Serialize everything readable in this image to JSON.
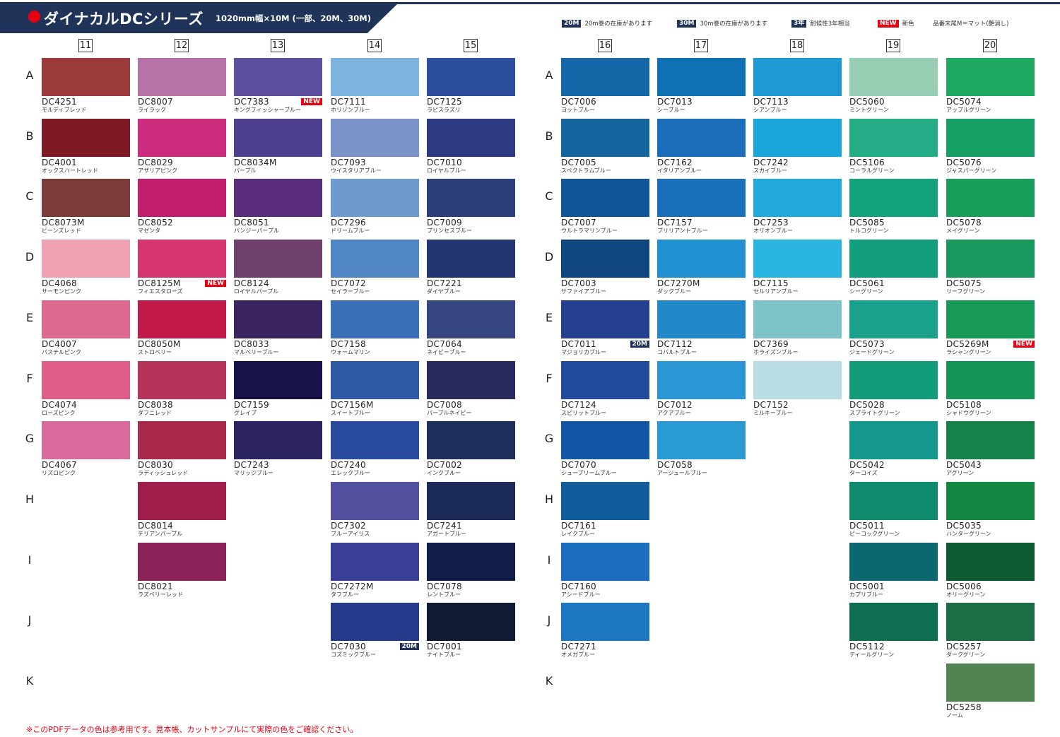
{
  "header": {
    "title": "ダイナカルDCシリーズ",
    "subtitle": "1020mm幅×10M (一部、20M、30M)"
  },
  "legend": [
    {
      "badge": "20M",
      "text": "20m巻の在庫があります",
      "badge_color": "#1f3458"
    },
    {
      "badge": "30M",
      "text": "30m巻の在庫があります",
      "badge_color": "#1f3458"
    },
    {
      "badge": "3年",
      "text": "耐候性3年相当",
      "badge_color": "#1f3458"
    },
    {
      "badge": "NEW",
      "text": "新色",
      "badge_color": "#e60012"
    },
    {
      "badge": "",
      "text": "品番末尾M＝マット(艶消し)",
      "badge_color": ""
    }
  ],
  "column_numbers": [
    "11",
    "12",
    "13",
    "14",
    "15",
    "16",
    "17",
    "18",
    "19",
    "20"
  ],
  "row_labels": [
    "A",
    "B",
    "C",
    "D",
    "E",
    "F",
    "G",
    "H",
    "I",
    "J",
    "K"
  ],
  "columns": [
    {
      "num": "11",
      "colors": [
        {
          "row": "A",
          "code": "DC4251",
          "name": "モルディブレッド",
          "hex": "#9a3a3b"
        },
        {
          "row": "B",
          "code": "DC4001",
          "name": "オックスハートレッド",
          "hex": "#7e1a24"
        },
        {
          "row": "C",
          "code": "DC8073M",
          "name": "ビーンズレッド",
          "hex": "#7b3b3a"
        },
        {
          "row": "D",
          "code": "DC4068",
          "name": "サーモンピンク",
          "hex": "#eea2b2"
        },
        {
          "row": "E",
          "code": "DC4007",
          "name": "パステルピンク",
          "hex": "#db6a8e"
        },
        {
          "row": "F",
          "code": "DC4074",
          "name": "ローズピンク",
          "hex": "#e05d89"
        },
        {
          "row": "G",
          "code": "DC4067",
          "name": "リズロピンク",
          "hex": "#d86b9c"
        }
      ]
    },
    {
      "num": "12",
      "colors": [
        {
          "row": "A",
          "code": "DC8007",
          "name": "ライラック",
          "hex": "#b673a8"
        },
        {
          "row": "B",
          "code": "DC8029",
          "name": "アザリアピンク",
          "hex": "#cc2b7e"
        },
        {
          "row": "C",
          "code": "DC8052",
          "name": "マゼンタ",
          "hex": "#c01d6a"
        },
        {
          "row": "D",
          "code": "DC8125M",
          "name": "フィエスタローズ",
          "hex": "#d53570",
          "tag": "NEW"
        },
        {
          "row": "E",
          "code": "DC8050M",
          "name": "ストロベリー",
          "hex": "#c11a4a"
        },
        {
          "row": "F",
          "code": "DC8038",
          "name": "ダフニレッド",
          "hex": "#b6335a"
        },
        {
          "row": "G",
          "code": "DC8030",
          "name": "ラディッシュレッド",
          "hex": "#a82849"
        },
        {
          "row": "H",
          "code": "DC8014",
          "name": "チリアンパープル",
          "hex": "#a01e4b"
        },
        {
          "row": "I",
          "code": "DC8021",
          "name": "ラズベリーレッド",
          "hex": "#8c2358"
        }
      ]
    },
    {
      "num": "13",
      "colors": [
        {
          "row": "A",
          "code": "DC7383",
          "name": "キングフィッシャーブルー",
          "hex": "#5e4f9e",
          "tag": "NEW"
        },
        {
          "row": "B",
          "code": "DC8034M",
          "name": "パープル",
          "hex": "#4f3f8f"
        },
        {
          "row": "C",
          "code": "DC8051",
          "name": "パンジーパープル",
          "hex": "#5a2c7c"
        },
        {
          "row": "D",
          "code": "DC8124",
          "name": "ロイヤルパープル",
          "hex": "#6e3e6d"
        },
        {
          "row": "E",
          "code": "DC8033",
          "name": "マルベリーブルー",
          "hex": "#3b2561"
        },
        {
          "row": "F",
          "code": "DC7159",
          "name": "グレイプ",
          "hex": "#171249"
        },
        {
          "row": "G",
          "code": "DC7243",
          "name": "マリッジブルー",
          "hex": "#2c2460"
        }
      ]
    },
    {
      "num": "14",
      "colors": [
        {
          "row": "A",
          "code": "DC7111",
          "name": "ホリゾンブルー",
          "hex": "#7cb3df"
        },
        {
          "row": "B",
          "code": "DC7093",
          "name": "ウイスタリアブルー",
          "hex": "#7993c9"
        },
        {
          "row": "C",
          "code": "DC7296",
          "name": "ドリームブルー",
          "hex": "#6f9ad0"
        },
        {
          "row": "D",
          "code": "DC7072",
          "name": "セイラーブルー",
          "hex": "#4f86c3"
        },
        {
          "row": "E",
          "code": "DC7158",
          "name": "ウォームマリン",
          "hex": "#3a70b6"
        },
        {
          "row": "F",
          "code": "DC7156M",
          "name": "スイートブルー",
          "hex": "#2e5aa5"
        },
        {
          "row": "G",
          "code": "DC7240",
          "name": "エレックブルー",
          "hex": "#2a4b9e"
        },
        {
          "row": "H",
          "code": "DC7302",
          "name": "ブルーアイリス",
          "hex": "#5450a0"
        },
        {
          "row": "I",
          "code": "DC7272M",
          "name": "タフブルー",
          "hex": "#3a3f98"
        },
        {
          "row": "J",
          "code": "DC7030",
          "name": "コズミックブルー",
          "hex": "#243989",
          "tag": "20M"
        }
      ]
    },
    {
      "num": "15",
      "colors": [
        {
          "row": "A",
          "code": "DC7125",
          "name": "ラピスラズリ",
          "hex": "#2d4e9c"
        },
        {
          "row": "B",
          "code": "DC7010",
          "name": "ロイヤルブルー",
          "hex": "#2c3a82"
        },
        {
          "row": "C",
          "code": "DC7009",
          "name": "プリンセスブルー",
          "hex": "#2c3d7b"
        },
        {
          "row": "D",
          "code": "DC7221",
          "name": "ダイヤブルー",
          "hex": "#233672"
        },
        {
          "row": "E",
          "code": "DC7064",
          "name": "ネイビーブルー",
          "hex": "#354682"
        },
        {
          "row": "F",
          "code": "DC7008",
          "name": "パープルネイビー",
          "hex": "#2b2a60"
        },
        {
          "row": "G",
          "code": "DC7002",
          "name": "インクブルー",
          "hex": "#1f2f5d"
        },
        {
          "row": "H",
          "code": "DC7241",
          "name": "アガートブルー",
          "hex": "#1c2a57"
        },
        {
          "row": "I",
          "code": "DC7078",
          "name": "レントブルー",
          "hex": "#131d4a"
        },
        {
          "row": "J",
          "code": "DC7001",
          "name": "ナイトブルー",
          "hex": "#0f1a33"
        }
      ]
    },
    {
      "num": "16",
      "colors": [
        {
          "row": "A",
          "code": "DC7006",
          "name": "ヨットブルー",
          "hex": "#1468a8"
        },
        {
          "row": "B",
          "code": "DC7005",
          "name": "スペクトラムブルー",
          "hex": "#14649e"
        },
        {
          "row": "C",
          "code": "DC7007",
          "name": "ウルトラマリンブルー",
          "hex": "#0f5699"
        },
        {
          "row": "D",
          "code": "DC7003",
          "name": "サファイアブルー",
          "hex": "#0f4680"
        },
        {
          "row": "E",
          "code": "DC7011",
          "name": "マジョリカブルー",
          "hex": "#24408e",
          "tag": "20M"
        },
        {
          "row": "F",
          "code": "DC7124",
          "name": "スピリットブルー",
          "hex": "#1f4b9a"
        },
        {
          "row": "G",
          "code": "DC7070",
          "name": "シュープリームブルー",
          "hex": "#1356a6"
        },
        {
          "row": "H",
          "code": "DC7161",
          "name": "レイクブルー",
          "hex": "#115c9a"
        },
        {
          "row": "I",
          "code": "DC7160",
          "name": "アシードブルー",
          "hex": "#1a6dbf"
        },
        {
          "row": "J",
          "code": "DC7271",
          "name": "オメガブルー",
          "hex": "#1c76c2"
        }
      ]
    },
    {
      "num": "17",
      "colors": [
        {
          "row": "A",
          "code": "DC7013",
          "name": "シーブルー",
          "hex": "#1070b4"
        },
        {
          "row": "B",
          "code": "DC7162",
          "name": "イタリアンブルー",
          "hex": "#1b6fba"
        },
        {
          "row": "C",
          "code": "DC7157",
          "name": "ブリリアントブルー",
          "hex": "#1a6fbc"
        },
        {
          "row": "D",
          "code": "DC7270M",
          "name": "ダックブルー",
          "hex": "#2090d0"
        },
        {
          "row": "E",
          "code": "DC7112",
          "name": "コバルトブルー",
          "hex": "#2289c9"
        },
        {
          "row": "F",
          "code": "DC7012",
          "name": "アクアブルー",
          "hex": "#2a96d4"
        },
        {
          "row": "G",
          "code": "DC7058",
          "name": "アージュールブルー",
          "hex": "#2a9ad4"
        }
      ]
    },
    {
      "num": "18",
      "colors": [
        {
          "row": "A",
          "code": "DC7113",
          "name": "シアンブルー",
          "hex": "#1f99d4"
        },
        {
          "row": "B",
          "code": "DC7242",
          "name": "スカイブルー",
          "hex": "#1aa6d8"
        },
        {
          "row": "C",
          "code": "DC7253",
          "name": "オリオンブルー",
          "hex": "#22a9dc"
        },
        {
          "row": "D",
          "code": "DC7115",
          "name": "セルリアンブルー",
          "hex": "#2ab5e0"
        },
        {
          "row": "E",
          "code": "DC7369",
          "name": "ホライズンブルー",
          "hex": "#7ec3c9"
        },
        {
          "row": "F",
          "code": "DC7152",
          "name": "ミルキーブルー",
          "hex": "#b9dde3"
        }
      ]
    },
    {
      "num": "19",
      "colors": [
        {
          "row": "A",
          "code": "DC5060",
          "name": "ミントグリーン",
          "hex": "#97cdb2"
        },
        {
          "row": "B",
          "code": "DC5106",
          "name": "コーラルグリーン",
          "hex": "#23ac86"
        },
        {
          "row": "C",
          "code": "DC5085",
          "name": "トルコグリーン",
          "hex": "#14a27c"
        },
        {
          "row": "D",
          "code": "DC5061",
          "name": "シーグリーン",
          "hex": "#139e7d"
        },
        {
          "row": "E",
          "code": "DC5073",
          "name": "ジェードグリーン",
          "hex": "#1aa18c"
        },
        {
          "row": "F",
          "code": "DC5028",
          "name": "スプライトグリーン",
          "hex": "#139c79"
        },
        {
          "row": "G",
          "code": "DC5042",
          "name": "ターコイズ",
          "hex": "#15998f"
        },
        {
          "row": "H",
          "code": "DC5011",
          "name": "ピーコックグリーン",
          "hex": "#0f8a6c"
        },
        {
          "row": "I",
          "code": "DC5001",
          "name": "カプリブルー",
          "hex": "#0b6870"
        },
        {
          "row": "J",
          "code": "DC5112",
          "name": "ティールグリーン",
          "hex": "#0d6e52"
        }
      ]
    },
    {
      "num": "20",
      "colors": [
        {
          "row": "A",
          "code": "DC5074",
          "name": "アップルグリーン",
          "hex": "#1fa85f"
        },
        {
          "row": "B",
          "code": "DC5076",
          "name": "ジャスパーグリーン",
          "hex": "#17a065"
        },
        {
          "row": "C",
          "code": "DC5078",
          "name": "メイグリーン",
          "hex": "#199e5b"
        },
        {
          "row": "D",
          "code": "DC5075",
          "name": "リーフグリーン",
          "hex": "#18985c"
        },
        {
          "row": "E",
          "code": "DC5269M",
          "name": "ラシャングリーン",
          "hex": "#179a57",
          "tag": "NEW"
        },
        {
          "row": "F",
          "code": "DC5108",
          "name": "シャドウグリーン",
          "hex": "#159458"
        },
        {
          "row": "G",
          "code": "DC5043",
          "name": "アグリーン",
          "hex": "#168148"
        },
        {
          "row": "H",
          "code": "DC5035",
          "name": "ハンターグリーン",
          "hex": "#138641"
        },
        {
          "row": "I",
          "code": "DC5006",
          "name": "オリーグリーン",
          "hex": "#0d5b32"
        },
        {
          "row": "J",
          "code": "DC5257",
          "name": "ダークグリーン",
          "hex": "#1b6d46"
        },
        {
          "row": "K",
          "code": "DC5258",
          "name": "ノーム",
          "hex": "#508551"
        }
      ]
    }
  ],
  "footnote": "※このPDFデータの色は参考用です。見本帳、カットサンプルにて実際の色をご確認ください。"
}
